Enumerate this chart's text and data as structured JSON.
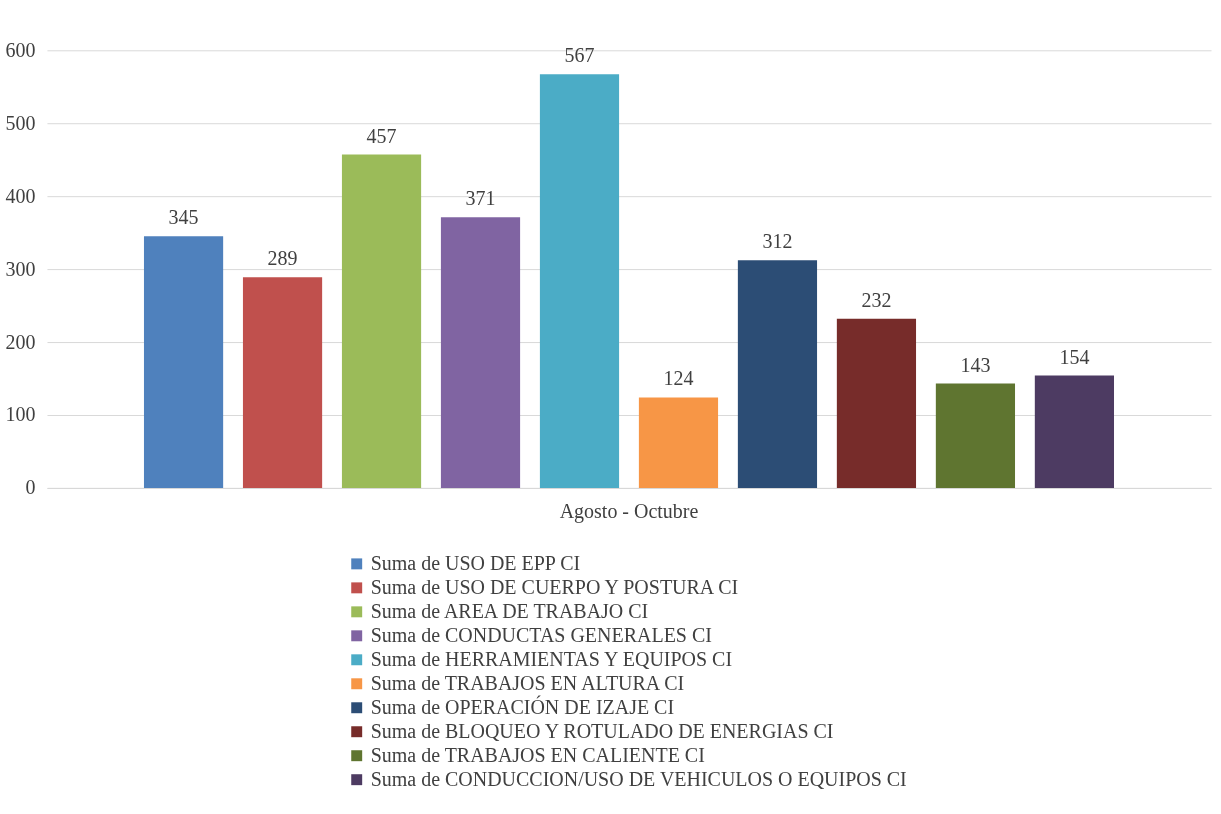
{
  "chart_data": {
    "type": "bar",
    "categories": [
      "Agosto  - Octubre"
    ],
    "series": [
      {
        "name": "Suma de USO DE EPP CI",
        "color": "#4f81bd",
        "values": [
          345
        ]
      },
      {
        "name": "Suma de USO DE CUERPO Y POSTURA CI",
        "color": "#c0504d",
        "values": [
          289
        ]
      },
      {
        "name": "Suma de AREA DE TRABAJO CI",
        "color": "#9bbb59",
        "values": [
          457
        ]
      },
      {
        "name": "Suma de CONDUCTAS GENERALES CI",
        "color": "#8064a2",
        "values": [
          371
        ]
      },
      {
        "name": "Suma de HERRAMIENTAS Y EQUIPOS CI",
        "color": "#4bacc6",
        "values": [
          567
        ]
      },
      {
        "name": "Suma de TRABAJOS EN ALTURA CI",
        "color": "#f79646",
        "values": [
          124
        ]
      },
      {
        "name": "Suma de OPERACIÓN DE IZAJE CI",
        "color": "#2c4d75",
        "values": [
          312
        ]
      },
      {
        "name": "Suma de BLOQUEO Y ROTULADO DE ENERGIAS CI",
        "color": "#772c2a",
        "values": [
          232
        ]
      },
      {
        "name": "Suma de TRABAJOS EN CALIENTE CI",
        "color": "#5f7530",
        "values": [
          143
        ]
      },
      {
        "name": "Suma de CONDUCCION/USO DE VEHICULOS O EQUIPOS CI",
        "color": "#4d3b62",
        "values": [
          154
        ]
      }
    ],
    "ylim": [
      0,
      600
    ],
    "yticks": [
      0,
      100,
      200,
      300,
      400,
      500,
      600
    ],
    "grid": "y",
    "legend": "bottom",
    "data_labels": true
  }
}
